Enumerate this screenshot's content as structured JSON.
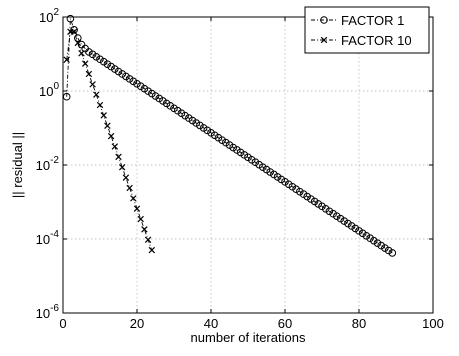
{
  "chart_data": {
    "type": "line",
    "xlabel": "number of iterations",
    "ylabel": "|| residual ||",
    "xlim": [
      0,
      100
    ],
    "ylim": [
      1e-06,
      100
    ],
    "yscale": "log",
    "grid": true,
    "legend_position": "top-right",
    "x_ticks": [
      {
        "value": 0,
        "label": "0"
      },
      {
        "value": 20,
        "label": "20"
      },
      {
        "value": 40,
        "label": "40"
      },
      {
        "value": 60,
        "label": "60"
      },
      {
        "value": 80,
        "label": "80"
      },
      {
        "value": 100,
        "label": "100"
      }
    ],
    "y_ticks": [
      {
        "value": 100,
        "base": "10",
        "exp": "2"
      },
      {
        "value": 1,
        "base": "10",
        "exp": "0"
      },
      {
        "value": 0.01,
        "base": "10",
        "exp": "-2"
      },
      {
        "value": 0.0001,
        "base": "10",
        "exp": "-4"
      },
      {
        "value": 1e-06,
        "base": "10",
        "exp": "-6"
      }
    ],
    "series": [
      {
        "name": "FACTOR 1",
        "marker": "circle",
        "line_style": "dash-dot",
        "color": "#000000",
        "points": [
          {
            "x": 1,
            "y": 0.7
          },
          {
            "x": 2,
            "y": 90
          },
          {
            "x": 3,
            "y": 45
          },
          {
            "x": 4,
            "y": 27
          },
          {
            "x": 5,
            "y": 18
          },
          {
            "x": 6,
            "y": 14
          },
          {
            "x": 7,
            "y": 11.4
          },
          {
            "x": 89,
            "y": 4.2e-05
          }
        ]
      },
      {
        "name": "FACTOR 10",
        "marker": "x",
        "line_style": "dash-dot",
        "color": "#000000",
        "points": [
          {
            "x": 1,
            "y": 7
          },
          {
            "x": 2,
            "y": 40
          },
          {
            "x": 3,
            "y": 40
          },
          {
            "x": 4,
            "y": 20
          },
          {
            "x": 24,
            "y": 5e-05
          }
        ]
      }
    ]
  }
}
